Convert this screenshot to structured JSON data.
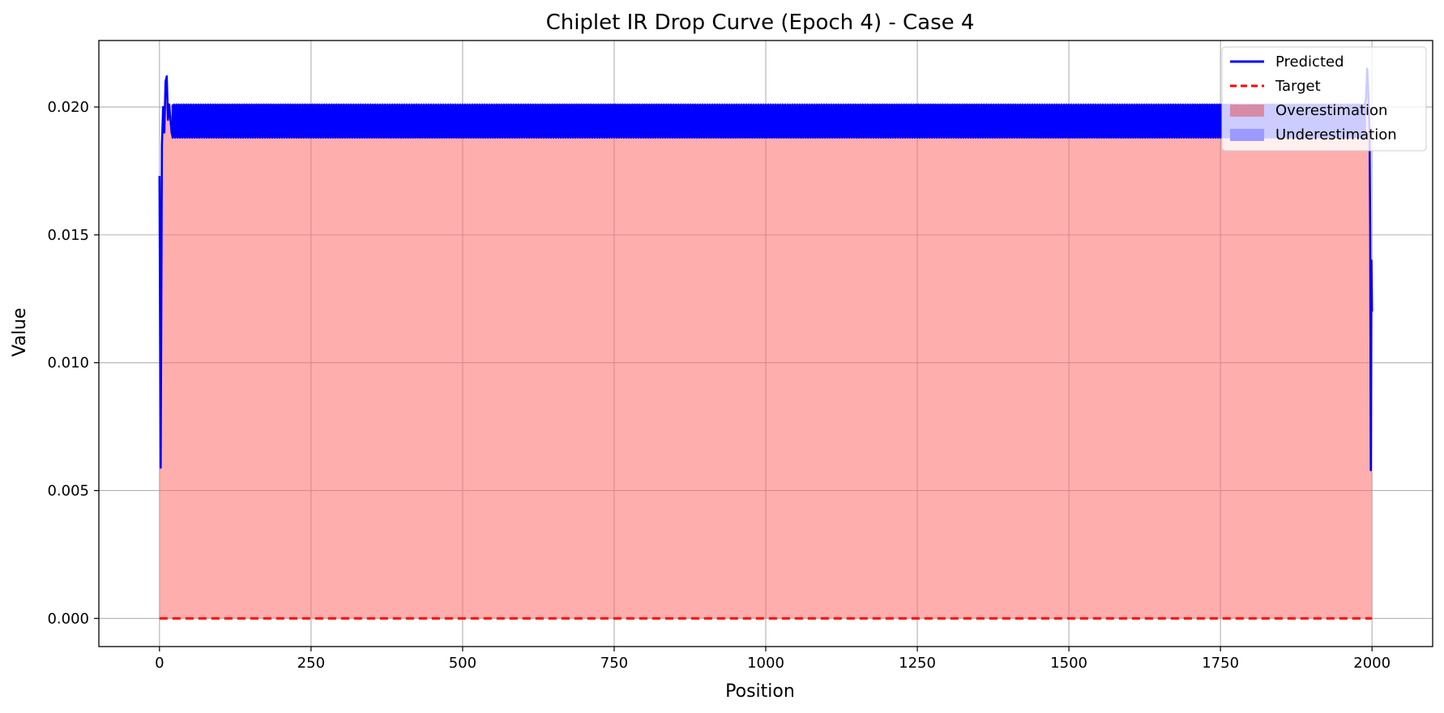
{
  "chart_data": {
    "type": "line",
    "title": "Chiplet IR Drop Curve (Epoch 4) - Case 4",
    "xlabel": "Position",
    "ylabel": "Value",
    "xlim": [
      -100,
      2100
    ],
    "ylim": [
      -0.0011,
      0.0226
    ],
    "grid": true,
    "legend_position": "top-right",
    "x_ticks": [
      0,
      250,
      500,
      750,
      1000,
      1250,
      1500,
      1750,
      2000
    ],
    "y_ticks": [
      0.0,
      0.005,
      0.01,
      0.015,
      0.02
    ],
    "x_tick_labels": [
      "0",
      "250",
      "500",
      "750",
      "1000",
      "1250",
      "1500",
      "1750",
      "2000"
    ],
    "y_tick_labels": [
      "0.000",
      "0.005",
      "0.010",
      "0.015",
      "0.020"
    ],
    "series": [
      {
        "name": "Predicted",
        "style": "solid",
        "color": "#0000ff",
        "x": [
          0,
          2,
          4,
          6,
          8,
          10,
          12,
          14,
          16,
          20,
          25,
          30,
          40,
          60,
          1960,
          1980,
          1985,
          1990,
          1992,
          1994,
          1996,
          1997,
          1998,
          1999,
          2000
        ],
        "values": [
          0.0173,
          0.0059,
          0.0185,
          0.02,
          0.019,
          0.021,
          0.0212,
          0.0195,
          0.0201,
          0.019,
          0.0201,
          0.0189,
          0.0201,
          0.0195,
          0.0195,
          0.0195,
          0.02,
          0.0203,
          0.0215,
          0.0205,
          0.019,
          0.015,
          0.0058,
          0.014,
          0.012
        ],
        "oscillation_band": {
          "x_start": 20,
          "x_end": 1990,
          "low": 0.0188,
          "high": 0.0201
        }
      },
      {
        "name": "Target",
        "style": "dashed",
        "color": "#ff0000",
        "x": [
          0,
          2000
        ],
        "values": [
          0.0,
          0.0
        ]
      }
    ],
    "fills": [
      {
        "name": "Overestimation",
        "color": "#ff6b6b",
        "opacity": 0.55,
        "legend_color": "#d98ba6"
      },
      {
        "name": "Underestimation",
        "color": "#0000ff",
        "opacity": 0.2,
        "legend_color": "#9a9aff"
      }
    ]
  }
}
